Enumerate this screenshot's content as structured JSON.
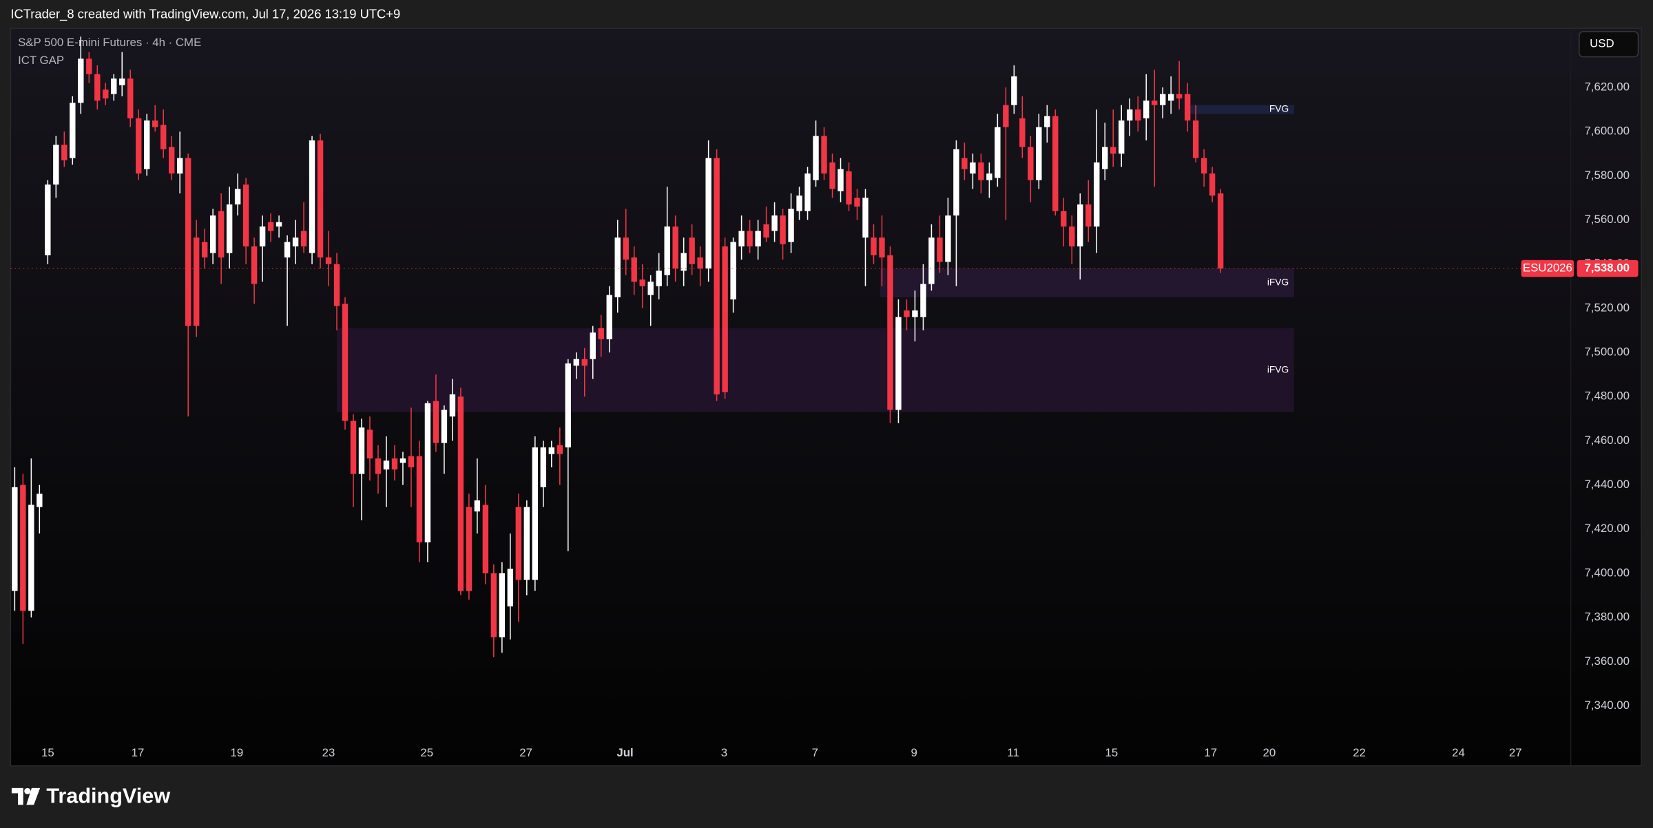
{
  "header": "ICTrader_8 created with TradingView.com, Jul 17, 2026 13:19 UTC+9",
  "brand": "TradingView",
  "chart_data": {
    "type": "candlestick",
    "title": "S&P 500 E-mini Futures · 4h · CME",
    "indicator": "ICT GAP",
    "currency": "USD",
    "up_color": "#ffffff",
    "down_color": "#f23645",
    "grid": false,
    "xlim": [
      -0.5,
      188.4
    ],
    "ylim": [
      7325.7,
      7646.7
    ],
    "xticks": [
      {
        "value": 4.0,
        "label": "15"
      },
      {
        "value": 14.9,
        "label": "17"
      },
      {
        "value": 26.9,
        "label": "19"
      },
      {
        "value": 38.0,
        "label": "23"
      },
      {
        "value": 49.9,
        "label": "25"
      },
      {
        "value": 61.9,
        "label": "27"
      },
      {
        "value": 73.9,
        "label": "Jul"
      },
      {
        "value": 85.9,
        "label": "3"
      },
      {
        "value": 96.9,
        "label": "7"
      },
      {
        "value": 108.9,
        "label": "9"
      },
      {
        "value": 120.9,
        "label": "11"
      },
      {
        "value": 132.8,
        "label": "15"
      },
      {
        "value": 144.8,
        "label": "17"
      },
      {
        "value": 151.9,
        "label": "20"
      },
      {
        "value": 162.8,
        "label": "22"
      },
      {
        "value": 174.8,
        "label": "24"
      },
      {
        "value": 181.7,
        "label": "27"
      }
    ],
    "yticks": [
      {
        "value": 7340,
        "label": "7,340.00"
      },
      {
        "value": 7360,
        "label": "7,360.00"
      },
      {
        "value": 7380,
        "label": "7,380.00"
      },
      {
        "value": 7400,
        "label": "7,400.00"
      },
      {
        "value": 7420,
        "label": "7,420.00"
      },
      {
        "value": 7440,
        "label": "7,440.00"
      },
      {
        "value": 7460,
        "label": "7,460.00"
      },
      {
        "value": 7480,
        "label": "7,480.00"
      },
      {
        "value": 7500,
        "label": "7,500.00"
      },
      {
        "value": 7520,
        "label": "7,520.00"
      },
      {
        "value": 7540,
        "label": "7,540.00"
      },
      {
        "value": 7560,
        "label": "7,560.00"
      },
      {
        "value": 7580,
        "label": "7,580.00"
      },
      {
        "value": 7600,
        "label": "7,600.00"
      },
      {
        "value": 7620,
        "label": "7,620.00"
      }
    ],
    "ohlc": [
      [
        7392,
        7448,
        7383,
        7439
      ],
      [
        7440,
        7445,
        7368,
        7383
      ],
      [
        7383,
        7452,
        7380,
        7431
      ],
      [
        7430,
        7440,
        7418,
        7436
      ],
      [
        7544,
        7578,
        7540,
        7576
      ],
      [
        7576,
        7598,
        7570,
        7594
      ],
      [
        7594,
        7600,
        7584,
        7587
      ],
      [
        7588,
        7616,
        7585,
        7613
      ],
      [
        7613,
        7643,
        7608,
        7633
      ],
      [
        7633,
        7636,
        7622,
        7626
      ],
      [
        7626,
        7630,
        7610,
        7614
      ],
      [
        7619,
        7622,
        7612,
        7615
      ],
      [
        7617,
        7626,
        7614,
        7624
      ],
      [
        7621,
        7636,
        7616,
        7624
      ],
      [
        7624,
        7628,
        7602,
        7606
      ],
      [
        7606,
        7610,
        7578,
        7581
      ],
      [
        7583,
        7608,
        7580,
        7605
      ],
      [
        7605,
        7612,
        7600,
        7602
      ],
      [
        7603,
        7610,
        7588,
        7592
      ],
      [
        7593,
        7598,
        7578,
        7581
      ],
      [
        7581,
        7600,
        7572,
        7588
      ],
      [
        7588,
        7590,
        7471,
        7512
      ],
      [
        7552,
        7560,
        7507,
        7512
      ],
      [
        7550,
        7556,
        7538,
        7543
      ],
      [
        7545,
        7565,
        7540,
        7562
      ],
      [
        7564,
        7572,
        7531,
        7543
      ],
      [
        7545,
        7575,
        7538,
        7567
      ],
      [
        7567,
        7581,
        7562,
        7574
      ],
      [
        7576,
        7579,
        7540,
        7548
      ],
      [
        7548,
        7552,
        7522,
        7531
      ],
      [
        7548,
        7562,
        7532,
        7557
      ],
      [
        7559,
        7563,
        7550,
        7555
      ],
      [
        7557,
        7562,
        7552,
        7559
      ],
      [
        7543,
        7553,
        7512,
        7550
      ],
      [
        7548,
        7560,
        7540,
        7552
      ],
      [
        7555,
        7568,
        7545,
        7548
      ],
      [
        7545,
        7598,
        7540,
        7596
      ],
      [
        7596,
        7599,
        7538,
        7543
      ],
      [
        7543,
        7555,
        7530,
        7540
      ],
      [
        7540,
        7545,
        7510,
        7521
      ],
      [
        7522,
        7525,
        7465,
        7469
      ],
      [
        7469,
        7472,
        7430,
        7445
      ],
      [
        7445,
        7470,
        7424,
        7466
      ],
      [
        7465,
        7471,
        7442,
        7452
      ],
      [
        7452,
        7458,
        7436,
        7445
      ],
      [
        7447,
        7462,
        7430,
        7451
      ],
      [
        7452,
        7458,
        7442,
        7447
      ],
      [
        7450,
        7455,
        7440,
        7452
      ],
      [
        7453,
        7475,
        7430,
        7448
      ],
      [
        7453,
        7460,
        7405,
        7414
      ],
      [
        7414,
        7478,
        7405,
        7477
      ],
      [
        7478,
        7490,
        7455,
        7459
      ],
      [
        7459,
        7476,
        7445,
        7474
      ],
      [
        7471,
        7488,
        7460,
        7481
      ],
      [
        7480,
        7484,
        7390,
        7392
      ],
      [
        7430,
        7436,
        7388,
        7392
      ],
      [
        7428,
        7452,
        7418,
        7433
      ],
      [
        7431,
        7440,
        7395,
        7400
      ],
      [
        7400,
        7404,
        7362,
        7371
      ],
      [
        7371,
        7405,
        7364,
        7400
      ],
      [
        7385,
        7418,
        7370,
        7402
      ],
      [
        7430,
        7436,
        7378,
        7397
      ],
      [
        7397,
        7433,
        7390,
        7430
      ],
      [
        7397,
        7462,
        7392,
        7457
      ],
      [
        7439,
        7460,
        7430,
        7457
      ],
      [
        7454,
        7460,
        7448,
        7457
      ],
      [
        7458,
        7466,
        7440,
        7454
      ],
      [
        7457,
        7497,
        7410,
        7495
      ],
      [
        7494,
        7500,
        7488,
        7497
      ],
      [
        7497,
        7502,
        7480,
        7494
      ],
      [
        7497,
        7512,
        7488,
        7509
      ],
      [
        7511,
        7517,
        7498,
        7506
      ],
      [
        7506,
        7530,
        7500,
        7526
      ],
      [
        7525,
        7560,
        7518,
        7552
      ],
      [
        7552,
        7565,
        7535,
        7542
      ],
      [
        7543,
        7548,
        7526,
        7532
      ],
      [
        7533,
        7540,
        7520,
        7530
      ],
      [
        7526,
        7535,
        7512,
        7532
      ],
      [
        7530,
        7545,
        7524,
        7537
      ],
      [
        7535,
        7575,
        7530,
        7557
      ],
      [
        7557,
        7562,
        7532,
        7538
      ],
      [
        7537,
        7552,
        7530,
        7545
      ],
      [
        7552,
        7558,
        7535,
        7540
      ],
      [
        7543,
        7548,
        7530,
        7538
      ],
      [
        7538,
        7596,
        7532,
        7588
      ],
      [
        7588,
        7592,
        7478,
        7481
      ],
      [
        7548,
        7552,
        7479,
        7482
      ],
      [
        7524,
        7552,
        7518,
        7550
      ],
      [
        7548,
        7562,
        7542,
        7555
      ],
      [
        7555,
        7560,
        7545,
        7548
      ],
      [
        7548,
        7560,
        7542,
        7555
      ],
      [
        7558,
        7566,
        7550,
        7552
      ],
      [
        7555,
        7568,
        7550,
        7562
      ],
      [
        7562,
        7565,
        7542,
        7549
      ],
      [
        7550,
        7572,
        7545,
        7565
      ],
      [
        7564,
        7575,
        7560,
        7571
      ],
      [
        7564,
        7584,
        7560,
        7581
      ],
      [
        7578,
        7605,
        7575,
        7598
      ],
      [
        7598,
        7602,
        7578,
        7581
      ],
      [
        7586,
        7590,
        7570,
        7574
      ],
      [
        7573,
        7588,
        7568,
        7583
      ],
      [
        7582,
        7586,
        7564,
        7567
      ],
      [
        7570,
        7574,
        7560,
        7566
      ],
      [
        7552,
        7574,
        7530,
        7570
      ],
      [
        7552,
        7558,
        7540,
        7544
      ],
      [
        7552,
        7562,
        7530,
        7543
      ],
      [
        7544,
        7548,
        7468,
        7474
      ],
      [
        7474,
        7524,
        7468,
        7516
      ],
      [
        7519,
        7524,
        7510,
        7516
      ],
      [
        7516,
        7528,
        7505,
        7519
      ],
      [
        7516,
        7540,
        7510,
        7531
      ],
      [
        7531,
        7558,
        7528,
        7552
      ],
      [
        7552,
        7562,
        7536,
        7541
      ],
      [
        7541,
        7570,
        7535,
        7562
      ],
      [
        7562,
        7596,
        7530,
        7592
      ],
      [
        7588,
        7595,
        7578,
        7583
      ],
      [
        7581,
        7590,
        7574,
        7586
      ],
      [
        7586,
        7590,
        7572,
        7578
      ],
      [
        7578,
        7586,
        7570,
        7581
      ],
      [
        7579,
        7608,
        7575,
        7602
      ],
      [
        7612,
        7620,
        7560,
        7602
      ],
      [
        7612,
        7630,
        7608,
        7625
      ],
      [
        7606,
        7616,
        7588,
        7593
      ],
      [
        7593,
        7598,
        7568,
        7578
      ],
      [
        7578,
        7608,
        7574,
        7602
      ],
      [
        7602,
        7612,
        7595,
        7607
      ],
      [
        7607,
        7610,
        7562,
        7564
      ],
      [
        7564,
        7570,
        7548,
        7557
      ],
      [
        7557,
        7562,
        7540,
        7548
      ],
      [
        7548,
        7572,
        7533,
        7567
      ],
      [
        7567,
        7578,
        7550,
        7557
      ],
      [
        7557,
        7610,
        7545,
        7586
      ],
      [
        7583,
        7604,
        7578,
        7593
      ],
      [
        7593,
        7610,
        7584,
        7590
      ],
      [
        7590,
        7612,
        7584,
        7605
      ],
      [
        7605,
        7615,
        7598,
        7610
      ],
      [
        7610,
        7616,
        7600,
        7605
      ],
      [
        7606,
        7626,
        7596,
        7614
      ],
      [
        7614,
        7628,
        7575,
        7612
      ],
      [
        7612,
        7620,
        7606,
        7617
      ],
      [
        7614,
        7625,
        7608,
        7617
      ],
      [
        7617,
        7632,
        7610,
        7615
      ],
      [
        7617,
        7622,
        7600,
        7605
      ],
      [
        7605,
        7612,
        7586,
        7588
      ],
      [
        7588,
        7592,
        7575,
        7581
      ],
      [
        7581,
        7584,
        7568,
        7571
      ],
      [
        7572,
        7574,
        7536,
        7538
      ]
    ],
    "zones": [
      {
        "label": "FVG",
        "x": [
          141.8,
          154.9
        ],
        "y": [
          7608,
          7612
        ],
        "color": "#1c2340"
      },
      {
        "label": "iFVG",
        "x": [
          104.8,
          154.9
        ],
        "y": [
          7525,
          7538
        ],
        "color": "#251730"
      },
      {
        "label": "iFVG",
        "x": [
          39.0,
          154.9
        ],
        "y": [
          7473,
          7511
        ],
        "color": "#22132a"
      }
    ],
    "last_price": {
      "value": 7538,
      "label": "7,538.00",
      "symbol": "ESU2026"
    }
  }
}
